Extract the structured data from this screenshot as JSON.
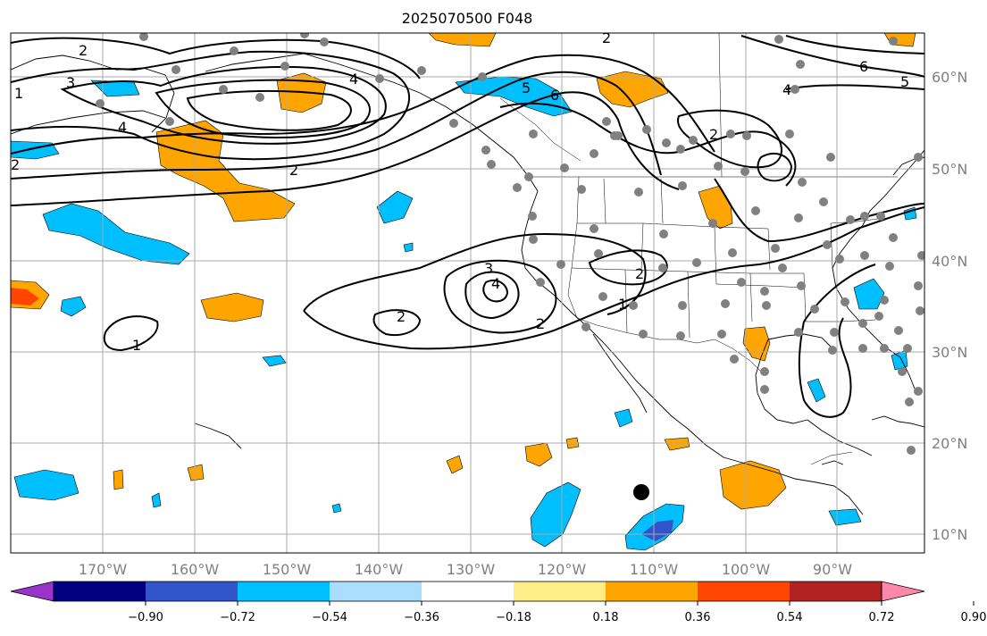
{
  "title": "2025070500 F048",
  "lon_labels": [
    "170°W",
    "160°W",
    "150°W",
    "140°W",
    "130°W",
    "120°W",
    "110°W",
    "100°W",
    "90°W"
  ],
  "lat_labels": [
    "60°N",
    "50°N",
    "40°N",
    "30°N",
    "20°N",
    "10°N"
  ],
  "colorbar": {
    "colors": [
      "#9933cc",
      "#000080",
      "#3355cc",
      "#00bfff",
      "#aaddff",
      "#ffffff",
      "#ffee88",
      "#ffa500",
      "#ff4500",
      "#b22222",
      "#ff88aa"
    ],
    "tick_labels": [
      "−0.90",
      "−0.72",
      "−0.54",
      "−0.36",
      "−0.18",
      "0.18",
      "0.36",
      "0.54",
      "0.72",
      "0.90"
    ]
  },
  "contour_labels": [
    "2",
    "3",
    "4",
    "2",
    "4",
    "5",
    "6",
    "2",
    "6",
    "4",
    "5",
    "2",
    "2",
    "3",
    "4",
    "2",
    "2",
    "1",
    "1",
    "2",
    "1"
  ],
  "colors": {
    "positive_fill": "#ffa500",
    "negative_fill": "#00bfff",
    "strong_negative_fill": "#3355cc",
    "strong_positive_fill": "#ff4500",
    "station": "#808080",
    "contour": "#000000",
    "grid": "#aaaaaa"
  }
}
